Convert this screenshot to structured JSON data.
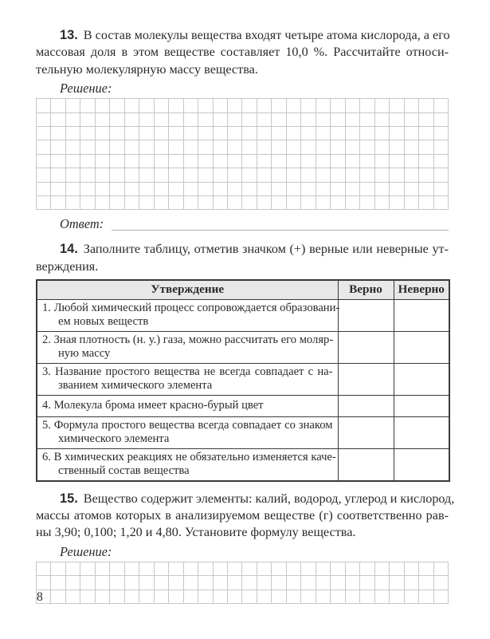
{
  "page_number": "8",
  "labels": {
    "solution": "Решение:",
    "answer": "Ответ:"
  },
  "problem13": {
    "number": "13.",
    "line1": "В состав молекулы вещества входят четыре атома кислорода, а его",
    "line2": "массовая доля в этом веществе составляет 10,0 %. Рассчитайте относи-",
    "line3": "тельную молекулярную массу вещества."
  },
  "problem14": {
    "number": "14.",
    "line1": "Заполните таблицу, отметив значком (+) верные или неверные ут-",
    "line2": "верждения."
  },
  "table": {
    "headers": {
      "statement": "Утверждение",
      "true": "Верно",
      "false": "Неверно"
    },
    "rows": [
      {
        "line1": "1. Любой химический процесс сопровождается образовани-",
        "line2": "ем новых веществ"
      },
      {
        "line1": "2. Зная плотность (н. у.) газа, можно рассчитать его моляр-",
        "line2": "ную массу"
      },
      {
        "line1": "3. Название простого вещества не всегда совпадает с на-",
        "line2": "званием химического элемента"
      },
      {
        "line1": "4. Молекула брома имеет красно-бурый цвет"
      },
      {
        "line1": "5. Формула простого вещества всегда совпадает со знаком",
        "line2": "химического элемента"
      },
      {
        "line1": "6. В химических реакциях не обязательно изменяется каче-",
        "line2": "ственный состав вещества"
      }
    ]
  },
  "problem15": {
    "number": "15.",
    "line1": "Вещество содержит элементы: калий, водород, углерод и кислород,",
    "line2": "массы атомов которых в анализируемом веществе (г) соответственно рав-",
    "line3": "ны 3,90; 0,100; 1,20 и 4,80. Установите формулу вещества."
  },
  "grids": {
    "solution13": {
      "rows": 8,
      "cols": 28
    },
    "solution15": {
      "rows": 3,
      "cols": 28
    }
  },
  "colors": {
    "text": "#2b2b2b",
    "grid_line": "#c7c7c7",
    "table_border": "#3a3a3a",
    "header_bg": "#e8e8e8",
    "answer_line": "#b3b3b3",
    "page_bg": "#ffffff"
  }
}
